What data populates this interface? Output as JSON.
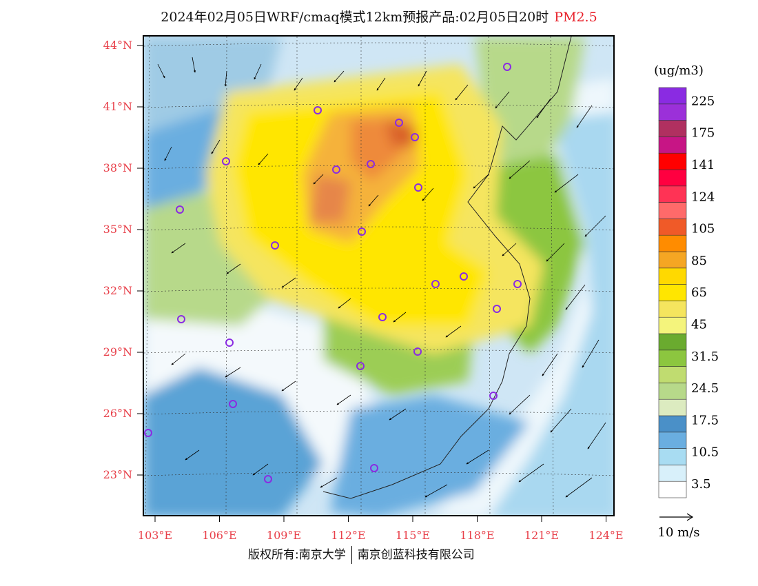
{
  "title": {
    "main": "2024年02月05日WRF/cmaq模式12km预报产品:02月05日20时",
    "pollutant": "PM2.5"
  },
  "lat_labels": [
    "44°N",
    "41°N",
    "38°N",
    "35°N",
    "32°N",
    "29°N",
    "26°N",
    "23°N"
  ],
  "lon_labels": [
    "103°E",
    "106°E",
    "109°E",
    "112°E",
    "115°E",
    "118°E",
    "121°E",
    "124°E"
  ],
  "label_color": "#e8404a",
  "legend": {
    "unit": "(ug/m3)",
    "colors": [
      "#ffffff",
      "#d8f0fa",
      "#a8dcf2",
      "#6aaee0",
      "#4a90c8",
      "#dcebc0",
      "#b7d98a",
      "#c0dc70",
      "#8cc63f",
      "#6aab2f",
      "#f4f47c",
      "#f5e55e",
      "#ffe600",
      "#ffd900",
      "#f5a623",
      "#ff8c00",
      "#f05a28",
      "#ff6a6a",
      "#ff3355",
      "#ff0040",
      "#ff0000",
      "#c71585",
      "#b03060",
      "#9b30d9",
      "#8a2be2"
    ],
    "ticks": [
      "3.5",
      "10.5",
      "17.5",
      "24.5",
      "31.5",
      "45",
      "65",
      "85",
      "105",
      "124",
      "141",
      "175",
      "225"
    ]
  },
  "wind_reference": {
    "label": "10 m/s"
  },
  "stations": 26,
  "copyright": {
    "left": "版权所有:南京大学",
    "right": "南京创蓝科技有限公司"
  }
}
